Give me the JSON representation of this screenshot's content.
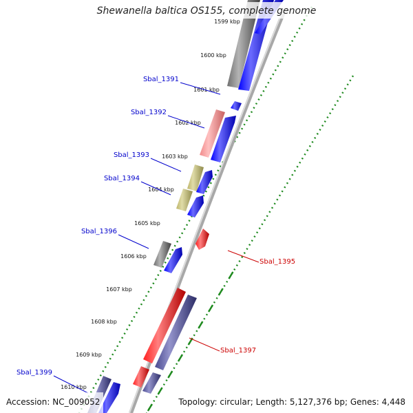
{
  "title": "Shewanella baltica OS155, complete genome",
  "footer": {
    "accession": "Accession: NC_009052",
    "topology": "Topology: circular; Length: 5,127,376 bp; Genes: 4,448"
  },
  "colors": {
    "backbone": "#8c8c8c",
    "tick_dots": "#1f8a1f",
    "blue": "#0000ee",
    "red": "#ee1111",
    "pink": "#e88080",
    "olive": "#b8b26a",
    "gray": "#6b6b6b",
    "slate": "#4a4a8c",
    "label_blue": "#0000cc",
    "label_red": "#cc0000"
  },
  "ticks": [
    {
      "label": "1599 kbp"
    },
    {
      "label": "1600 kbp"
    },
    {
      "label": "1601 kbp"
    },
    {
      "label": "1602 kbp"
    },
    {
      "label": "1603 kbp"
    },
    {
      "label": "1604 kbp"
    },
    {
      "label": "1605 kbp"
    },
    {
      "label": "1606 kbp"
    },
    {
      "label": "1607 kbp"
    },
    {
      "label": "1608 kbp"
    },
    {
      "label": "1609 kbp"
    },
    {
      "label": "1610 kbp"
    }
  ],
  "gene_labels": [
    {
      "name": "Sbal_1391"
    },
    {
      "name": "Sbal_1392"
    },
    {
      "name": "Sbal_1393"
    },
    {
      "name": "Sbal_1394"
    },
    {
      "name": "Sbal_1396"
    },
    {
      "name": "Sbal_1399"
    },
    {
      "name": "Sbal_1395"
    },
    {
      "name": "Sbal_1397"
    }
  ]
}
